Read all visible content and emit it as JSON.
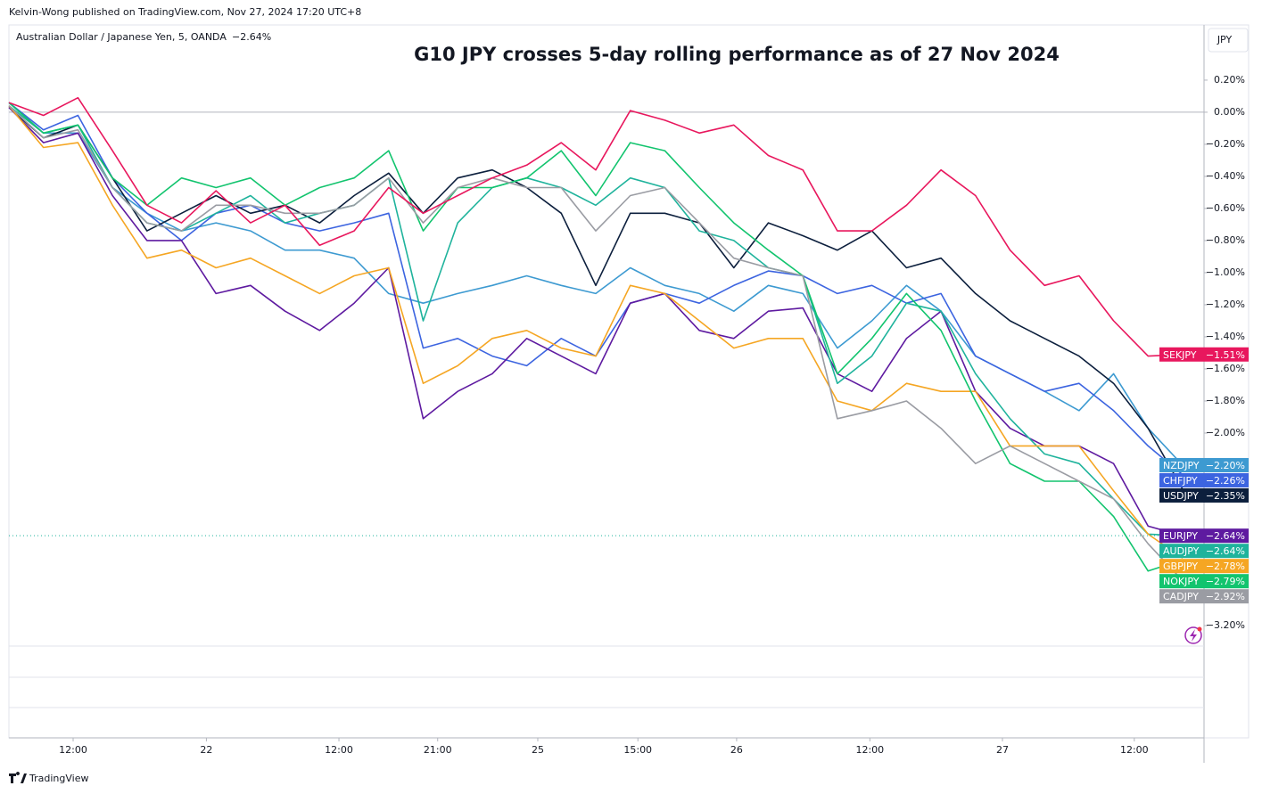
{
  "header": {
    "published": "Kelvin-Wong published on TradingView.com, Nov 27, 2024 17:20 UTC+8",
    "symbol": "Australian Dollar / Japanese Yen, 5, OANDA",
    "currency": "JPY",
    "brand": "TradingView"
  },
  "chart_data": {
    "type": "line",
    "title": "G10 JPY crosses 5-day rolling performance as of 27 Nov 2024",
    "x": [
      0,
      50,
      100,
      150,
      200,
      250,
      300,
      350,
      400,
      450,
      500,
      550,
      600,
      650,
      700,
      750,
      800,
      850,
      900,
      950,
      1000,
      1050,
      1100,
      1150,
      1200,
      1250,
      1300,
      1350,
      1400,
      1450,
      1500,
      1550,
      1600,
      1650,
      1700
    ],
    "xlim": [
      0,
      1731
    ],
    "xticks": [
      {
        "value": 93,
        "label": "12:00"
      },
      {
        "value": 286,
        "label": "22"
      },
      {
        "value": 478,
        "label": "12:00"
      },
      {
        "value": 621,
        "label": "21:00"
      },
      {
        "value": 766,
        "label": "25"
      },
      {
        "value": 911,
        "label": "15:00"
      },
      {
        "value": 1054,
        "label": "26"
      },
      {
        "value": 1247,
        "label": "12:00"
      },
      {
        "value": 1439,
        "label": "27"
      },
      {
        "value": 1630,
        "label": "12:00"
      }
    ],
    "ylim": [
      -3.9,
      0.544
    ],
    "yticks": [
      {
        "value": 0.2,
        "label": "0.20%"
      },
      {
        "value": 0,
        "label": "0.00%"
      },
      {
        "value": -0.2,
        "label": "−0.20%"
      },
      {
        "value": -0.4,
        "label": "−0.40%"
      },
      {
        "value": -0.6,
        "label": "−0.60%"
      },
      {
        "value": -0.8,
        "label": "−0.80%"
      },
      {
        "value": -1.0,
        "label": "−1.00%"
      },
      {
        "value": -1.2,
        "label": "−1.20%"
      },
      {
        "value": -1.4,
        "label": "−1.40%"
      },
      {
        "value": -1.6,
        "label": "−1.60%"
      },
      {
        "value": -1.8,
        "label": "−1.80%"
      },
      {
        "value": -2.0,
        "label": "−2.00%"
      },
      {
        "value": -3.2,
        "label": "−3.20%"
      }
    ],
    "baseline": 0,
    "grid": false,
    "price_line_series": 4,
    "series": [
      {
        "name": "NZDJPY",
        "color": "#3d9ad1",
        "end_label": "−2.20%",
        "values": [
          0.06,
          -0.13,
          -0.13,
          -0.47,
          -0.63,
          -0.74,
          -0.69,
          -0.74,
          -0.86,
          -0.86,
          -0.91,
          -1.13,
          -1.19,
          -1.13,
          -1.08,
          -1.02,
          -1.08,
          -1.13,
          -0.97,
          -1.08,
          -1.13,
          -1.24,
          -1.08,
          -1.13,
          -1.47,
          -1.3,
          -1.08,
          -1.24,
          -1.52,
          -1.63,
          -1.74,
          -1.86,
          -1.63,
          -1.97,
          -2.2
        ]
      },
      {
        "name": "CHFJPY",
        "color": "#3c64e0",
        "end_label": "−2.26%",
        "values": [
          0.06,
          -0.11,
          -0.02,
          -0.41,
          -0.63,
          -0.8,
          -0.63,
          -0.58,
          -0.69,
          -0.74,
          -0.69,
          -0.63,
          -1.47,
          -1.41,
          -1.52,
          -1.58,
          -1.41,
          -1.52,
          -1.19,
          -1.13,
          -1.19,
          -1.08,
          -0.99,
          -1.02,
          -1.13,
          -1.08,
          -1.19,
          -1.13,
          -1.52,
          -1.63,
          -1.74,
          -1.69,
          -1.86,
          -2.08,
          -2.26
        ]
      },
      {
        "name": "USDJPY",
        "color": "#0c1f3d",
        "end_label": "−2.35%",
        "values": [
          0.03,
          -0.16,
          -0.08,
          -0.41,
          -0.74,
          -0.63,
          -0.52,
          -0.63,
          -0.58,
          -0.69,
          -0.52,
          -0.38,
          -0.63,
          -0.41,
          -0.36,
          -0.47,
          -0.63,
          -1.08,
          -0.63,
          -0.63,
          -0.69,
          -0.97,
          -0.69,
          -0.77,
          -0.86,
          -0.74,
          -0.97,
          -0.91,
          -1.13,
          -1.3,
          -1.41,
          -1.52,
          -1.69,
          -1.97,
          -2.35
        ]
      },
      {
        "name": "EURJPY",
        "color": "#5e1aa0",
        "end_label": "−2.64%",
        "values": [
          0.03,
          -0.19,
          -0.13,
          -0.52,
          -0.8,
          -0.8,
          -1.13,
          -1.08,
          -1.24,
          -1.36,
          -1.19,
          -0.97,
          -1.91,
          -1.74,
          -1.63,
          -1.41,
          -1.52,
          -1.63,
          -1.19,
          -1.13,
          -1.36,
          -1.41,
          -1.24,
          -1.22,
          -1.63,
          -1.74,
          -1.41,
          -1.24,
          -1.74,
          -1.97,
          -2.08,
          -2.08,
          -2.19,
          -2.58,
          -2.64
        ]
      },
      {
        "name": "AUDJPY",
        "color": "#1fb39c",
        "end_label": "−2.64%",
        "values": [
          0.04,
          -0.13,
          -0.08,
          -0.47,
          -0.69,
          -0.74,
          -0.63,
          -0.52,
          -0.69,
          -0.63,
          -0.58,
          -0.41,
          -1.3,
          -0.69,
          -0.47,
          -0.41,
          -0.47,
          -0.58,
          -0.41,
          -0.47,
          -0.74,
          -0.8,
          -0.97,
          -1.02,
          -1.69,
          -1.52,
          -1.19,
          -1.24,
          -1.63,
          -1.91,
          -2.13,
          -2.19,
          -2.41,
          -2.63,
          -2.64
        ]
      },
      {
        "name": "GBPJPY",
        "color": "#f5a623",
        "end_label": "−2.78%",
        "values": [
          0.04,
          -0.22,
          -0.19,
          -0.58,
          -0.91,
          -0.86,
          -0.97,
          -0.91,
          -1.02,
          -1.13,
          -1.02,
          -0.97,
          -1.69,
          -1.58,
          -1.41,
          -1.36,
          -1.47,
          -1.52,
          -1.08,
          -1.13,
          -1.3,
          -1.47,
          -1.41,
          -1.41,
          -1.8,
          -1.86,
          -1.69,
          -1.74,
          -1.74,
          -2.08,
          -2.08,
          -2.08,
          -2.36,
          -2.63,
          -2.78
        ]
      },
      {
        "name": "NOKJPY",
        "color": "#12c46e",
        "end_label": "−2.79%",
        "values": [
          0.06,
          -0.13,
          -0.08,
          -0.41,
          -0.58,
          -0.41,
          -0.47,
          -0.41,
          -0.58,
          -0.47,
          -0.41,
          -0.24,
          -0.74,
          -0.47,
          -0.47,
          -0.41,
          -0.24,
          -0.52,
          -0.19,
          -0.24,
          -0.47,
          -0.69,
          -0.86,
          -1.02,
          -1.63,
          -1.41,
          -1.13,
          -1.36,
          -1.8,
          -2.19,
          -2.3,
          -2.3,
          -2.52,
          -2.86,
          -2.79
        ]
      },
      {
        "name": "CADJPY",
        "color": "#9a9ca3",
        "end_label": "−2.92%",
        "values": [
          0.04,
          -0.16,
          -0.11,
          -0.47,
          -0.69,
          -0.74,
          -0.58,
          -0.58,
          -0.63,
          -0.63,
          -0.58,
          -0.41,
          -0.69,
          -0.47,
          -0.41,
          -0.47,
          -0.47,
          -0.74,
          -0.52,
          -0.47,
          -0.69,
          -0.91,
          -0.97,
          -1.02,
          -1.91,
          -1.86,
          -1.8,
          -1.97,
          -2.19,
          -2.08,
          -2.19,
          -2.3,
          -2.41,
          -2.69,
          -2.92
        ]
      },
      {
        "name": "SEKJPY",
        "color": "#e8175d",
        "end_label": "−1.51%",
        "values": [
          0.06,
          -0.02,
          0.09,
          -0.24,
          -0.58,
          -0.69,
          -0.49,
          -0.69,
          -0.58,
          -0.83,
          -0.74,
          -0.47,
          -0.63,
          -0.52,
          -0.41,
          -0.33,
          -0.19,
          -0.36,
          0.01,
          -0.05,
          -0.13,
          -0.08,
          -0.27,
          -0.36,
          -0.74,
          -0.74,
          -0.58,
          -0.36,
          -0.52,
          -0.86,
          -1.08,
          -1.02,
          -1.3,
          -1.52,
          -1.51
        ]
      }
    ]
  }
}
